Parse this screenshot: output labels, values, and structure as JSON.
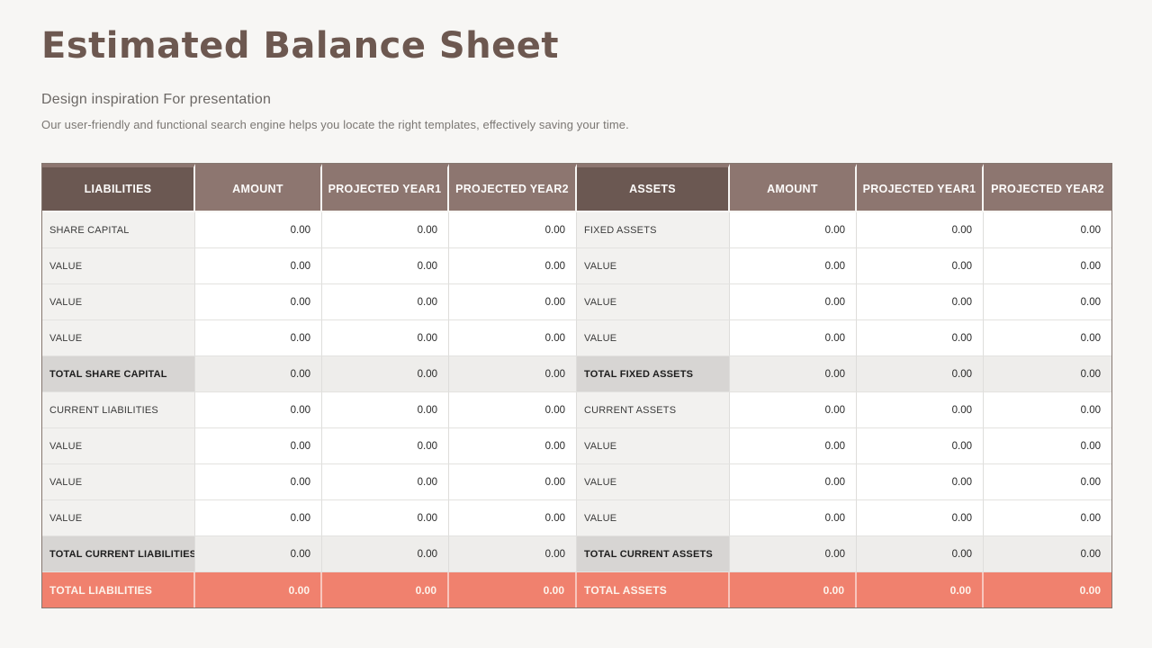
{
  "header": {
    "title": "Estimated Balance Sheet",
    "subtitle": "Design inspiration For presentation",
    "description": "Our user-friendly and functional search engine helps you locate the right templates, effectively saving your time."
  },
  "colors": {
    "slide_background": "#f7f6f4",
    "title_text": "#6d5850",
    "header_dark_brown": "#6b5852",
    "header_light_mauve": "#8d7670",
    "label_cell_gray": "#f2f1ef",
    "total_label_gray": "#d7d5d3",
    "total_value_gray": "#eeedeb",
    "grand_total_coral": "#f0816e"
  },
  "table": {
    "headers": [
      "LIABILITIES",
      "AMOUNT",
      "PROJECTED YEAR1",
      "PROJECTED YEAR2",
      "ASSETS",
      "AMOUNT",
      "PROJECTED YEAR1",
      "PROJECTED YEAR2"
    ],
    "rows": [
      {
        "type": "normal",
        "cells": [
          "SHARE CAPITAL",
          "0.00",
          "0.00",
          "0.00",
          "FIXED ASSETS",
          "0.00",
          "0.00",
          "0.00"
        ]
      },
      {
        "type": "normal",
        "cells": [
          "VALUE",
          "0.00",
          "0.00",
          "0.00",
          "VALUE",
          "0.00",
          "0.00",
          "0.00"
        ]
      },
      {
        "type": "normal",
        "cells": [
          "VALUE",
          "0.00",
          "0.00",
          "0.00",
          "VALUE",
          "0.00",
          "0.00",
          "0.00"
        ]
      },
      {
        "type": "normal",
        "cells": [
          "VALUE",
          "0.00",
          "0.00",
          "0.00",
          "VALUE",
          "0.00",
          "0.00",
          "0.00"
        ]
      },
      {
        "type": "total",
        "cells": [
          "TOTAL SHARE CAPITAL",
          "0.00",
          "0.00",
          "0.00",
          "TOTAL FIXED ASSETS",
          "0.00",
          "0.00",
          "0.00"
        ]
      },
      {
        "type": "normal",
        "cells": [
          "CURRENT LIABILITIES",
          "0.00",
          "0.00",
          "0.00",
          "CURRENT ASSETS",
          "0.00",
          "0.00",
          "0.00"
        ]
      },
      {
        "type": "normal",
        "cells": [
          "VALUE",
          "0.00",
          "0.00",
          "0.00",
          "VALUE",
          "0.00",
          "0.00",
          "0.00"
        ]
      },
      {
        "type": "normal",
        "cells": [
          "VALUE",
          "0.00",
          "0.00",
          "0.00",
          "VALUE",
          "0.00",
          "0.00",
          "0.00"
        ]
      },
      {
        "type": "normal",
        "cells": [
          "VALUE",
          "0.00",
          "0.00",
          "0.00",
          "VALUE",
          "0.00",
          "0.00",
          "0.00"
        ]
      },
      {
        "type": "total",
        "cells": [
          "TOTAL CURRENT LIABILITIES",
          "0.00",
          "0.00",
          "0.00",
          "TOTAL CURRENT ASSETS",
          "0.00",
          "0.00",
          "0.00"
        ]
      },
      {
        "type": "grand",
        "cells": [
          "TOTAL LIABILITIES",
          "0.00",
          "0.00",
          "0.00",
          "TOTAL ASSETS",
          "0.00",
          "0.00",
          "0.00"
        ]
      }
    ]
  }
}
